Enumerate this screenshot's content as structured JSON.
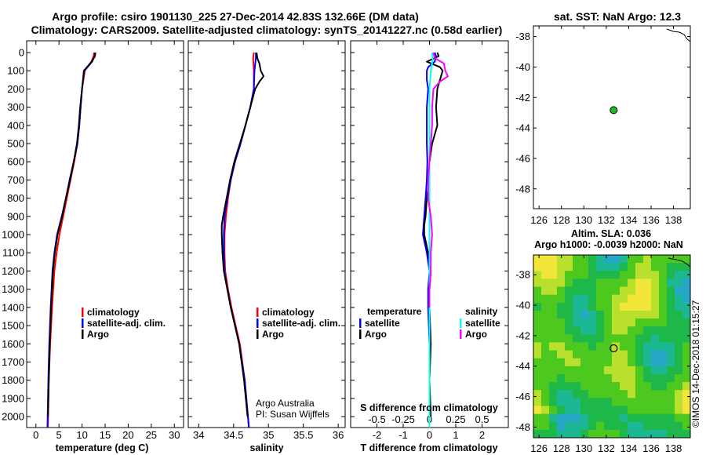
{
  "title": {
    "line1": "Argo profile: csiro 1901130_225 27-Dec-2014 42.83S 132.66E (DM data)",
    "line2": "Climatology: CARS2009. Satellite-adjusted climatology: synTS_20141227.nc (0.58d earlier)"
  },
  "colors": {
    "climatology": "#ff0000",
    "satellite": "#0000ff",
    "argo": "#000000",
    "sal_satellite": "#00ffff",
    "sal_argo": "#ff00ff"
  },
  "credits": {
    "line1": "Argo Australia",
    "line2": "PI: Susan Wijffels"
  },
  "watermark": "©IMOS 14-Dec-2018 01:15:27",
  "chart_data": [
    {
      "type": "line",
      "name": "temperature",
      "xlabel": "temperature (deg C)",
      "xlim": [
        -2,
        32
      ],
      "ylim": [
        2060,
        0
      ],
      "x_ticks": [
        0,
        5,
        10,
        15,
        20,
        25,
        30
      ],
      "x_tick_labels": [
        "0",
        "5",
        "10",
        "15",
        "20",
        "25",
        "30"
      ],
      "y_ticks": [
        0,
        100,
        200,
        300,
        400,
        500,
        600,
        700,
        800,
        900,
        1000,
        1100,
        1200,
        1300,
        1400,
        1500,
        1600,
        1700,
        1800,
        1900,
        2000
      ],
      "y_tick_labels": [
        "0",
        "100",
        "200",
        "300",
        "400",
        "500",
        "600",
        "700",
        "800",
        "900",
        "1000",
        "1100",
        "1200",
        "1300",
        "1400",
        "1500",
        "1600",
        "1700",
        "1800",
        "1900",
        "2000"
      ],
      "legend": [
        "climatology",
        "satellite-adj. clim.",
        "Argo"
      ],
      "series": [
        {
          "name": "climatology",
          "color": "#ff0000",
          "pressure": [
            0,
            20,
            50,
            100,
            150,
            200,
            300,
            400,
            500,
            600,
            700,
            800,
            900,
            1000,
            1100,
            1200,
            1400,
            1600,
            1800,
            2060
          ],
          "values": [
            12.6,
            12.5,
            12.0,
            10.6,
            10.3,
            10.0,
            9.7,
            9.4,
            9.0,
            8.3,
            7.5,
            6.7,
            5.9,
            5.1,
            4.5,
            4.0,
            3.5,
            3.1,
            2.8,
            2.6
          ]
        },
        {
          "name": "satellite-adj. clim.",
          "color": "#0000ff",
          "pressure": [
            0,
            20,
            50,
            100,
            150,
            200,
            300,
            400,
            500,
            600,
            700,
            800,
            900,
            1000,
            1100,
            1200,
            1400,
            1600,
            1800,
            2060
          ],
          "values": [
            12.8,
            12.7,
            12.2,
            10.5,
            10.2,
            10.0,
            9.7,
            9.4,
            9.0,
            8.2,
            7.3,
            6.5,
            5.6,
            4.6,
            4.0,
            3.6,
            3.2,
            2.9,
            2.7,
            2.5
          ]
        },
        {
          "name": "Argo",
          "color": "#000000",
          "pressure": [
            0,
            20,
            50,
            100,
            150,
            200,
            300,
            400,
            500,
            600,
            700,
            800,
            900,
            1000,
            1100,
            1200,
            1400,
            1600,
            1800,
            2000
          ],
          "values": [
            12.9,
            12.8,
            12.1,
            10.4,
            10.2,
            10.0,
            9.6,
            9.3,
            8.9,
            8.2,
            7.4,
            6.5,
            5.7,
            4.7,
            4.1,
            3.7,
            3.3,
            3.0,
            2.8,
            2.6
          ]
        }
      ]
    },
    {
      "type": "line",
      "name": "salinity",
      "xlabel": "salinity",
      "xlim": [
        33.85,
        36.1
      ],
      "ylim": [
        2060,
        0
      ],
      "x_ticks": [
        34,
        34.5,
        35,
        35.5,
        36
      ],
      "x_tick_labels": [
        "34",
        "34.5",
        "35",
        "35.5",
        "36"
      ],
      "legend": [
        "climatology",
        "satellite-adj. clim.",
        "Argo"
      ],
      "series": [
        {
          "name": "climatology",
          "color": "#ff0000",
          "pressure": [
            0,
            30,
            100,
            200,
            300,
            400,
            500,
            600,
            700,
            800,
            900,
            1000,
            1100,
            1200,
            1300,
            1400,
            1500,
            1600,
            1800,
            2060
          ],
          "values": [
            34.79,
            34.78,
            34.79,
            34.79,
            34.74,
            34.67,
            34.6,
            34.52,
            34.46,
            34.42,
            34.39,
            34.37,
            34.37,
            34.38,
            34.42,
            34.47,
            34.53,
            34.59,
            34.66,
            34.72
          ]
        },
        {
          "name": "satellite-adj. clim.",
          "color": "#0000ff",
          "pressure": [
            0,
            30,
            100,
            200,
            300,
            400,
            500,
            600,
            700,
            800,
            900,
            1000,
            1100,
            1200,
            1300,
            1400,
            1500,
            1600,
            1800,
            2060
          ],
          "values": [
            34.82,
            34.82,
            34.8,
            34.79,
            34.74,
            34.67,
            34.6,
            34.52,
            34.46,
            34.41,
            34.37,
            34.36,
            34.36,
            34.37,
            34.41,
            34.46,
            34.52,
            34.58,
            34.66,
            34.72
          ]
        },
        {
          "name": "Argo",
          "color": "#000000",
          "pressure": [
            0,
            30,
            60,
            100,
            130,
            160,
            200,
            300,
            400,
            500,
            600,
            700,
            800,
            900,
            950,
            1000,
            1100,
            1200,
            1300,
            1400,
            1500,
            1600,
            1800,
            2000
          ],
          "values": [
            34.83,
            34.84,
            34.87,
            34.89,
            34.93,
            34.87,
            34.81,
            34.74,
            34.67,
            34.59,
            34.51,
            34.45,
            34.4,
            34.35,
            34.33,
            34.33,
            34.34,
            34.36,
            34.41,
            34.46,
            34.52,
            34.58,
            34.65,
            34.7
          ]
        }
      ]
    },
    {
      "type": "line",
      "name": "differences",
      "xlabel": "T difference from climatology",
      "xlabel2": "S difference from climatology",
      "xlim": [
        -3,
        3
      ],
      "ylim": [
        2060,
        0
      ],
      "x_ticks": [
        -2,
        -1,
        0,
        1,
        2
      ],
      "x_tick_labels": [
        "-2",
        "-1",
        "0",
        "1",
        "2"
      ],
      "x2_ticks": [
        -2,
        -1,
        0,
        1,
        2
      ],
      "x2_tick_labels": [
        "-0.5",
        "-0.25",
        "0",
        "0.25",
        "0.5"
      ],
      "legend_temperature": {
        "header": "temperature",
        "items": [
          "satellite",
          "Argo"
        ]
      },
      "legend_salinity": {
        "header": "salinity",
        "items": [
          "satellite",
          "Argo"
        ]
      },
      "series": [
        {
          "name": "T satellite",
          "color": "#0000ff",
          "pressure": [
            0,
            20,
            50,
            80,
            100,
            150,
            200,
            300,
            400,
            500,
            600,
            700,
            800,
            900,
            1000,
            1100,
            1200,
            1300,
            1400,
            1600,
            1800,
            2000
          ],
          "values": [
            0.2,
            0.25,
            0.2,
            -0.05,
            -0.1,
            -0.1,
            -0.05,
            -0.1,
            -0.1,
            -0.1,
            -0.08,
            -0.1,
            -0.15,
            -0.2,
            -0.25,
            -0.1,
            0,
            -0.05,
            -0.05,
            0,
            0,
            0
          ]
        },
        {
          "name": "T Argo",
          "color": "#000000",
          "pressure": [
            0,
            20,
            50,
            80,
            100,
            150,
            200,
            300,
            400,
            500,
            600,
            700,
            800,
            900,
            950,
            1000,
            1100,
            1200,
            1300,
            1400,
            1600,
            1800,
            2000
          ],
          "values": [
            0.3,
            0.35,
            -0.1,
            0.4,
            0.5,
            0.4,
            0.3,
            0.25,
            0.3,
            0.1,
            0,
            0,
            -0.1,
            -0.15,
            -0.2,
            -0.2,
            -0.05,
            0.05,
            0,
            0,
            0.05,
            0,
            0.05
          ]
        },
        {
          "name": "S satellite",
          "color": "#00ffff",
          "pressure": [
            0,
            40,
            100,
            200,
            300,
            400,
            500,
            600,
            700,
            800,
            900,
            1000,
            1100,
            1200,
            1300,
            1400,
            1600,
            1800,
            2060
          ],
          "values": [
            0.1,
            0.12,
            0.05,
            0,
            0,
            0,
            0,
            0,
            0,
            0,
            0,
            0,
            0,
            0,
            0,
            0,
            0,
            0,
            0
          ]
        },
        {
          "name": "S Argo",
          "color": "#ff00ff",
          "pressure": [
            0,
            30,
            60,
            100,
            130,
            160,
            200,
            300,
            400,
            500,
            600,
            700,
            800,
            900,
            1000,
            1100,
            1200,
            1300,
            1400
          ],
          "values": [
            0.15,
            0.2,
            0.55,
            0.6,
            0.7,
            0.4,
            0.15,
            0.1,
            0.1,
            0.05,
            0,
            -0.05,
            -0.05,
            0.05,
            0.1,
            0.05,
            0.05,
            0,
            0
          ]
        }
      ]
    },
    {
      "type": "scatter",
      "name": "sst-map",
      "title": "sat. SST: NaN Argo: 12.3",
      "xlim": [
        125.5,
        139.5
      ],
      "ylim": [
        -49.3,
        -37.3
      ],
      "x_ticks": [
        126,
        128,
        130,
        132,
        134,
        136,
        138
      ],
      "x_tick_labels": [
        "126",
        "128",
        "130",
        "132",
        "134",
        "136",
        "138"
      ],
      "y_ticks": [
        -38,
        -40,
        -42,
        -44,
        -46,
        -48
      ],
      "y_tick_labels": [
        "-38",
        "-40",
        "-42",
        "-44",
        "-46",
        "-48"
      ],
      "profile_location": {
        "lon": 132.66,
        "lat": -42.83,
        "color": "#22bb22"
      }
    },
    {
      "type": "heatmap",
      "name": "sla-map",
      "title_line1": "Altim. SLA: 0.036",
      "title_line2": "Argo h1000: -0.0039 h2000: NaN",
      "xlim": [
        125.5,
        139.5
      ],
      "ylim": [
        -48.7,
        -36.7
      ],
      "x_ticks": [
        126,
        128,
        130,
        132,
        134,
        136,
        138
      ],
      "x_tick_labels": [
        "126",
        "128",
        "130",
        "132",
        "134",
        "136",
        "138"
      ],
      "y_ticks": [
        -38,
        -40,
        -42,
        -44,
        -46,
        -48
      ],
      "y_tick_labels": [
        "-38",
        "-40",
        "-42",
        "-44",
        "-46",
        "-48"
      ],
      "profile_location": {
        "lon": 132.66,
        "lat": -42.83
      }
    }
  ]
}
